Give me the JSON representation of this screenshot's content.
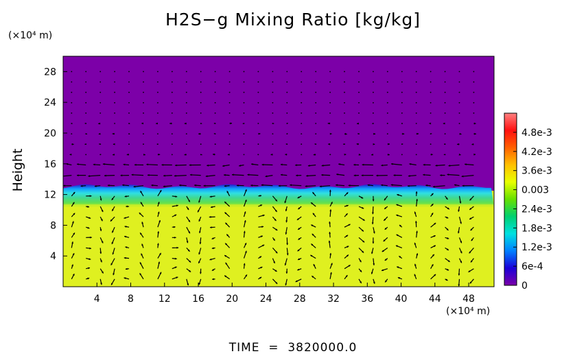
{
  "chart_data": {
    "type": "heatmap",
    "title": "H2S−g Mixing Ratio [kg/kg]",
    "ylabel": "Height",
    "x_unit": "(×10⁴ m)",
    "y_unit": "(×10⁴ m)",
    "xlim": [
      0,
      51
    ],
    "ylim": [
      0,
      30
    ],
    "x_ticks": [
      4,
      8,
      12,
      16,
      20,
      24,
      28,
      32,
      36,
      40,
      44,
      48
    ],
    "y_ticks": [
      4,
      8,
      12,
      16,
      20,
      24,
      28
    ],
    "colorbar": {
      "range": [
        0,
        0.0054
      ],
      "ticks": [
        {
          "value": 0,
          "label": "0"
        },
        {
          "value": 0.0006,
          "label": "6e-4"
        },
        {
          "value": 0.0012,
          "label": "1.2e-3"
        },
        {
          "value": 0.0018,
          "label": "1.8e-3"
        },
        {
          "value": 0.0024,
          "label": "2.4e-3"
        },
        {
          "value": 0.003,
          "label": "0.003"
        },
        {
          "value": 0.0036,
          "label": "3.6e-3"
        },
        {
          "value": 0.0042,
          "label": "4.2e-3"
        },
        {
          "value": 0.0048,
          "label": "4.8e-3"
        }
      ],
      "colors": [
        "#7c00a8",
        "#1a00d8",
        "#0080ff",
        "#00e0e0",
        "#00d070",
        "#66e000",
        "#e8ff00",
        "#ffc000",
        "#ff6000",
        "#ff1010",
        "#ff8080"
      ]
    },
    "field": {
      "upper_value": 0.0,
      "lower_value": 0.0035,
      "interface_height": 12.5,
      "transition_colors": [
        "#2a10c8",
        "#10a0ff",
        "#30e0e0",
        "#40d890",
        "#60e050",
        "#c8f020"
      ]
    },
    "vectors": "wind velocity field, strongest near the interface (y≈12–16) with circulation cells below"
  },
  "footer": {
    "time_label": "TIME  =  3820000.0"
  }
}
